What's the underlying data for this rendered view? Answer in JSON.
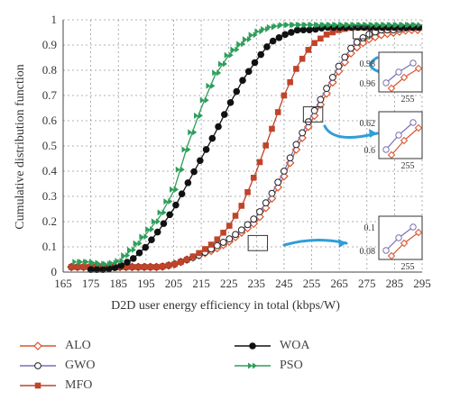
{
  "chart_data": {
    "type": "line",
    "ylabel": "Cumulative distribution function",
    "xlabel": "D2D user energy efficiency in total (kbps/W)",
    "xlim": [
      165,
      295
    ],
    "ylim": [
      0,
      1
    ],
    "xticks": [
      165,
      175,
      185,
      195,
      205,
      215,
      225,
      235,
      245,
      255,
      265,
      275,
      285,
      295
    ],
    "yticks": [
      0,
      0.1,
      0.2,
      0.3,
      0.4,
      0.5,
      0.6,
      0.7,
      0.8,
      0.9,
      1
    ],
    "grid": true,
    "legend_position": "bottom",
    "series": [
      {
        "name": "ALO",
        "color": "#d9532c",
        "marker": "diamond-open",
        "x": [
          168,
          175,
          185,
          195,
          200,
          205,
          210,
          215,
          220,
          225,
          230,
          235,
          240,
          245,
          250,
          255,
          260,
          265,
          270,
          275,
          280,
          285,
          290,
          295
        ],
        "y": [
          0.02,
          0.02,
          0.02,
          0.02,
          0.02,
          0.03,
          0.05,
          0.07,
          0.09,
          0.12,
          0.16,
          0.2,
          0.28,
          0.38,
          0.5,
          0.6,
          0.7,
          0.8,
          0.88,
          0.92,
          0.94,
          0.95,
          0.96,
          0.96
        ]
      },
      {
        "name": "GWO",
        "color": "#7b6fb3",
        "marker": "circle-open",
        "x": [
          168,
          175,
          185,
          195,
          200,
          205,
          210,
          215,
          220,
          225,
          230,
          235,
          240,
          245,
          250,
          255,
          260,
          265,
          270,
          275,
          280,
          285,
          290,
          295
        ],
        "y": [
          0.02,
          0.02,
          0.02,
          0.02,
          0.02,
          0.03,
          0.05,
          0.07,
          0.1,
          0.13,
          0.17,
          0.22,
          0.3,
          0.4,
          0.52,
          0.62,
          0.72,
          0.82,
          0.9,
          0.94,
          0.96,
          0.96,
          0.97,
          0.97
        ]
      },
      {
        "name": "MFO",
        "color": "#c0442a",
        "marker": "square",
        "x": [
          168,
          175,
          185,
          195,
          200,
          205,
          210,
          215,
          220,
          225,
          230,
          235,
          240,
          245,
          250,
          255,
          260,
          265,
          270,
          275,
          280,
          285,
          290,
          295
        ],
        "y": [
          0.02,
          0.02,
          0.02,
          0.02,
          0.02,
          0.03,
          0.05,
          0.08,
          0.12,
          0.18,
          0.27,
          0.4,
          0.55,
          0.7,
          0.82,
          0.9,
          0.94,
          0.96,
          0.97,
          0.97,
          0.97,
          0.97,
          0.97,
          0.97
        ]
      },
      {
        "name": "WOA",
        "color": "#111111",
        "marker": "circle",
        "x": [
          175,
          180,
          185,
          190,
          195,
          200,
          205,
          210,
          215,
          220,
          225,
          230,
          235,
          240,
          245,
          250,
          255,
          260,
          265,
          270,
          280,
          290,
          295
        ],
        "y": [
          0.01,
          0.01,
          0.02,
          0.05,
          0.1,
          0.17,
          0.25,
          0.35,
          0.45,
          0.55,
          0.66,
          0.76,
          0.84,
          0.91,
          0.94,
          0.96,
          0.96,
          0.97,
          0.97,
          0.97,
          0.97,
          0.97,
          0.97
        ]
      },
      {
        "name": "PSO",
        "color": "#2e9e5b",
        "marker": "double-arrow",
        "x": [
          170,
          175,
          180,
          185,
          190,
          195,
          200,
          205,
          210,
          215,
          220,
          225,
          230,
          235,
          240,
          245,
          250,
          255,
          260,
          265,
          270,
          280,
          290,
          295
        ],
        "y": [
          0.04,
          0.04,
          0.03,
          0.04,
          0.09,
          0.15,
          0.22,
          0.32,
          0.5,
          0.65,
          0.78,
          0.86,
          0.91,
          0.95,
          0.97,
          0.98,
          0.98,
          0.98,
          0.98,
          0.98,
          0.98,
          0.98,
          0.98,
          0.98
        ]
      }
    ],
    "insets": [
      {
        "ylabels": [
          "0.98",
          "0.96"
        ],
        "xlabel": "255"
      },
      {
        "ylabels": [
          "0.62",
          "0.6"
        ],
        "xlabel": "255"
      },
      {
        "ylabels": [
          "0.1",
          "0.08"
        ],
        "xlabel": "255"
      }
    ]
  }
}
